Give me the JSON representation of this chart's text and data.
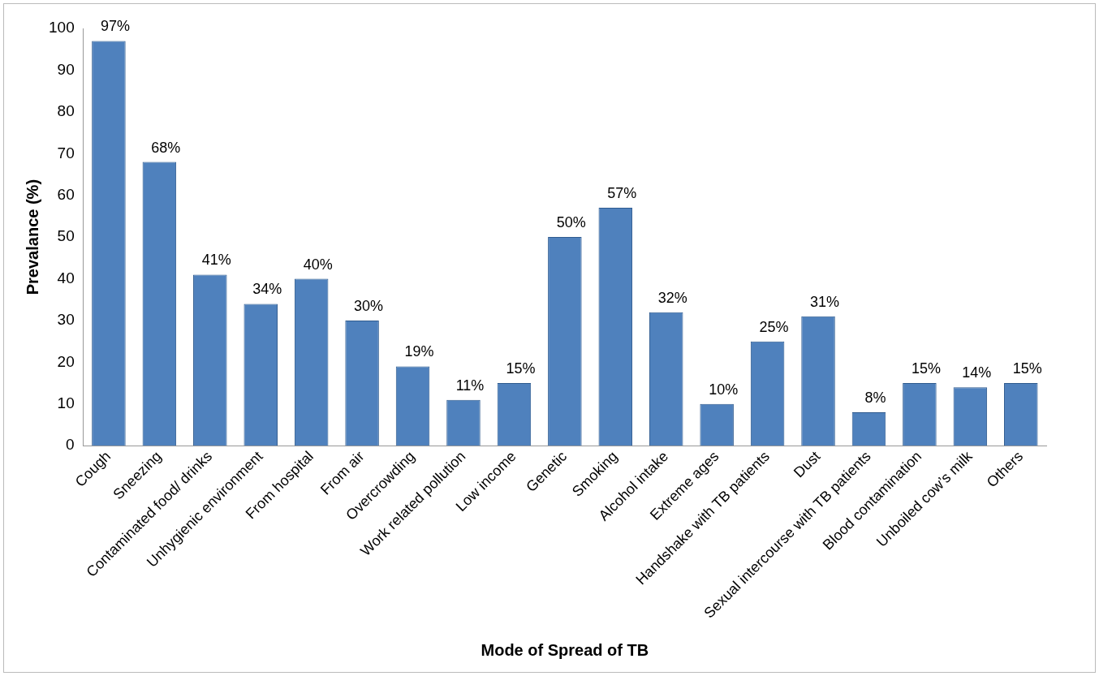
{
  "chart_data": {
    "type": "bar",
    "xlabel": "Mode of Spread of TB",
    "ylabel": "Prevalance (%)",
    "categories": [
      "Cough",
      "Sneezing",
      "Contaminated food/ drinks",
      "Unhygienic environment",
      "From hospital",
      "From air",
      "Overcrowding",
      "Work related pollution",
      "Low income",
      "Genetic",
      "Smoking",
      "Alcohol intake",
      "Extreme ages",
      "Handshake with TB patients",
      "Dust",
      "Sexual intercourse with TB patients",
      "Blood contamination",
      "Unboiled cow’s milk",
      "Others"
    ],
    "values": [
      97,
      68,
      41,
      34,
      40,
      30,
      19,
      11,
      15,
      50,
      57,
      32,
      10,
      25,
      31,
      8,
      15,
      14,
      15
    ],
    "value_labels": [
      "97%",
      "68%",
      "41%",
      "34%",
      "40%",
      "30%",
      "19%",
      "11%",
      "15%",
      "50%",
      "57%",
      "32%",
      "10%",
      "25%",
      "31%",
      "8%",
      "15%",
      "14%",
      "15%"
    ],
    "color": "#4f81bd",
    "ylim": [
      0,
      100
    ],
    "yticks": [
      0,
      10,
      20,
      30,
      40,
      50,
      60,
      70,
      80,
      90,
      100
    ],
    "grid": false,
    "legend": false
  }
}
